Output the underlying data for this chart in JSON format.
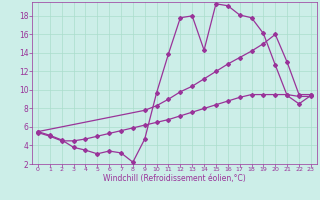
{
  "xlabel": "Windchill (Refroidissement éolien,°C)",
  "background_color": "#cceee8",
  "grid_color": "#aaddcc",
  "line_color": "#993399",
  "xlim": [
    -0.5,
    23.5
  ],
  "ylim": [
    2,
    19.5
  ],
  "xticks": [
    0,
    1,
    2,
    3,
    4,
    5,
    6,
    7,
    8,
    9,
    10,
    11,
    12,
    13,
    14,
    15,
    16,
    17,
    18,
    19,
    20,
    21,
    22,
    23
  ],
  "yticks": [
    2,
    4,
    6,
    8,
    10,
    12,
    14,
    16,
    18
  ],
  "line1_x": [
    0,
    1,
    2,
    3,
    4,
    5,
    6,
    7,
    8,
    9,
    10,
    11,
    12,
    13,
    14,
    15,
    16,
    17,
    18,
    19,
    20,
    21,
    22,
    23
  ],
  "line1_y": [
    5.5,
    5.1,
    4.6,
    3.8,
    3.5,
    3.1,
    3.4,
    3.2,
    2.2,
    4.7,
    9.7,
    13.9,
    17.8,
    18.0,
    14.3,
    19.3,
    19.1,
    18.1,
    17.8,
    16.1,
    12.7,
    9.4,
    8.5,
    9.4
  ],
  "line2_x": [
    0,
    9,
    10,
    11,
    12,
    13,
    14,
    15,
    16,
    17,
    18,
    19,
    20,
    21,
    22,
    23
  ],
  "line2_y": [
    5.5,
    7.8,
    8.3,
    9.0,
    9.8,
    10.4,
    11.2,
    12.0,
    12.8,
    13.5,
    14.2,
    15.0,
    16.0,
    13.0,
    9.5,
    9.5
  ],
  "line3_x": [
    0,
    1,
    2,
    3,
    4,
    5,
    6,
    7,
    8,
    9,
    10,
    11,
    12,
    13,
    14,
    15,
    16,
    17,
    18,
    19,
    20,
    21,
    22,
    23
  ],
  "line3_y": [
    5.4,
    5.0,
    4.5,
    4.5,
    4.7,
    5.0,
    5.3,
    5.6,
    5.9,
    6.2,
    6.5,
    6.8,
    7.2,
    7.6,
    8.0,
    8.4,
    8.8,
    9.2,
    9.5,
    9.5,
    9.5,
    9.5,
    9.3,
    9.3
  ]
}
